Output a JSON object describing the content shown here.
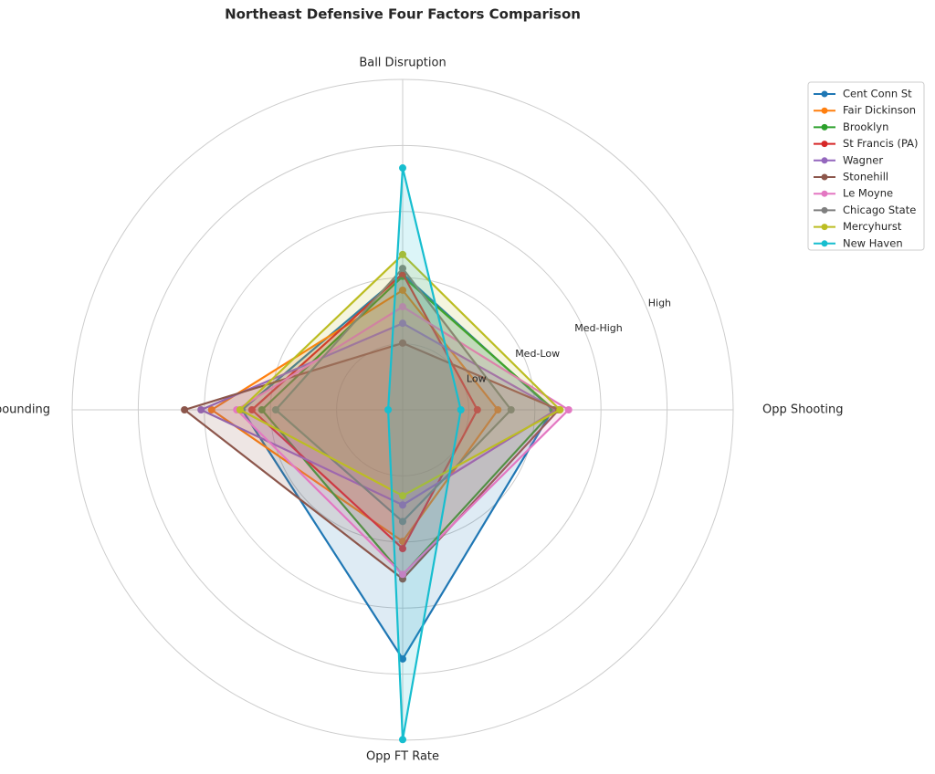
{
  "chart_data": {
    "type": "radar",
    "title": "Northeast Defensive Four Factors Comparison",
    "categories": [
      "Ball Disruption",
      "Opp Shooting",
      "Opp FT Rate",
      "Def Rebounding"
    ],
    "ylim": [
      0,
      5
    ],
    "yticks": [
      {
        "value": 1,
        "label": "Low"
      },
      {
        "value": 2,
        "label": "Med-Low"
      },
      {
        "value": 3,
        "label": "Med-High"
      },
      {
        "value": 4,
        "label": "High"
      }
    ],
    "grid": true,
    "legend": "upper right",
    "series": [
      {
        "name": "Cent Conn St",
        "color": "#1f77b4",
        "values": [
          2.06,
          2.27,
          3.77,
          2.43
        ]
      },
      {
        "name": "Fair Dickinson",
        "color": "#ff7f0e",
        "values": [
          1.81,
          1.44,
          1.99,
          2.89
        ]
      },
      {
        "name": "Brooklyn",
        "color": "#2ca02c",
        "values": [
          2.02,
          2.29,
          2.5,
          2.13
        ]
      },
      {
        "name": "St Francis (PA)",
        "color": "#d62728",
        "values": [
          2.06,
          1.13,
          2.1,
          2.28
        ]
      },
      {
        "name": "Wagner",
        "color": "#9467bd",
        "values": [
          1.31,
          2.32,
          1.44,
          3.05
        ]
      },
      {
        "name": "Stonehill",
        "color": "#8c564b",
        "values": [
          1.01,
          2.36,
          2.56,
          3.3
        ]
      },
      {
        "name": "Le Moyne",
        "color": "#e377c2",
        "values": [
          1.56,
          2.51,
          2.49,
          2.51
        ]
      },
      {
        "name": "Chicago State",
        "color": "#7f7f7f",
        "values": [
          2.14,
          1.64,
          1.69,
          1.92
        ]
      },
      {
        "name": "Mercyhurst",
        "color": "#bcbd22",
        "values": [
          2.35,
          2.38,
          1.3,
          2.46
        ]
      },
      {
        "name": "New Haven",
        "color": "#17becf",
        "values": [
          3.66,
          0.88,
          4.99,
          0.22
        ]
      }
    ]
  }
}
